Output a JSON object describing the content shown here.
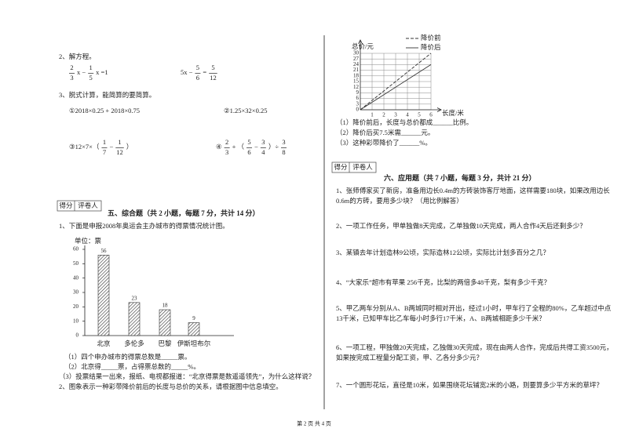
{
  "left": {
    "q2": "2、解方程。",
    "eq1": [
      {
        "n": "2",
        "d": "3"
      },
      "x −",
      {
        "n": "1",
        "d": "5"
      },
      "x =1"
    ],
    "eq2": [
      "5x −",
      {
        "n": "5",
        "d": "6"
      },
      "=",
      {
        "n": "5",
        "d": "12"
      }
    ],
    "q3": "3、脱式计算，能简算的要简算。",
    "c1": [
      "①2018×0.25 + 2018×0.75"
    ],
    "c2": [
      "②1.25×32×0.25"
    ],
    "c3": [
      "③12×7×（",
      {
        "n": "1",
        "d": "7"
      },
      "−",
      {
        "n": "1",
        "d": "12"
      },
      "）"
    ],
    "c4": [
      "④",
      {
        "n": "2",
        "d": "3"
      },
      "+ （",
      {
        "n": "5",
        "d": "6"
      },
      "−",
      {
        "n": "3",
        "d": "4"
      },
      "）÷",
      {
        "n": "3",
        "d": "8"
      }
    ],
    "score": [
      "得分",
      "评卷人"
    ],
    "section": "五、综合题（共 2 小题，每题 7 分，共计 14 分）",
    "p1": "1、下面是申报2008年奥运会主办城市的得票情况统计图。",
    "bar_chart": {
      "unit": "单位：票",
      "categories": [
        "北京",
        "多伦多",
        "巴黎",
        "伊斯坦布尔"
      ],
      "values": [
        56,
        23,
        18,
        9
      ],
      "ylim": [
        0,
        60
      ],
      "yticks": [
        0,
        10,
        20,
        30,
        40,
        50,
        60
      ]
    },
    "subs": [
      "（1）四个申办城市的得票总数是_____票。",
      "（2）北京得_____票，占得票总数的_____%。",
      "（3）投票结果一出来，报纸、电视都报道：“北京得票是数遥遥领先”，为什么这样说？"
    ],
    "p2": "2、图象表示一种彩带降价前后的长度与总价的关系，请根据图中信息填空。"
  },
  "right": {
    "line_chart": {
      "ylabel": "总价/元",
      "xlabel": "长度/米",
      "x": [
        0,
        6
      ],
      "series": [
        {
          "name": "降价前",
          "values": [
            0,
            30
          ]
        },
        {
          "name": "降价后",
          "values": [
            0,
            24
          ]
        }
      ],
      "xlim": [
        0,
        6
      ],
      "ylim": [
        0,
        30
      ],
      "xticks": [
        1,
        2,
        3,
        4,
        5,
        6
      ],
      "yticks": [
        0,
        3,
        6,
        9,
        12,
        15,
        18,
        21,
        24,
        27,
        30
      ]
    },
    "subs": [
      "（1）降价前后，长度与总价都成______比例。",
      "（2）降价后买7.5米需______元。",
      "（3）这种彩带降价了______%。"
    ],
    "score": [
      "得分",
      "评卷人"
    ],
    "section": "六、应用题（共 7 小题，每题 3 分，共计 21 分）",
    "questions": [
      [
        "1、张师傅家买了新房，准备用边长0.4m的方砖装饰客厅地面，这样需要180块，如果改用边长",
        "0.6m的方砖，要用多少块？（用比例解答）"
      ],
      [
        "2、一项工作任务，甲单独做8天完成，乙单独做10天完成，两人合作4天后还剩多少？"
      ],
      [
        "3、某镇去年计划造林9公顷，实际造林12公顷，实际比计划多百分之几？"
      ],
      [
        "4、“大家乐”超市有苹果 256千克，比梨的两倍多48千克，梨有多少千克？"
      ],
      [
        "5、甲乙两车分别从A、B两城同时相对开出，经过1小时，甲车行了全程的80%，乙车超过中点",
        "13千米，已知甲车比乙车每小时多行17千米，A、B两城相距多少千米？"
      ],
      [
        "6、一项工程，甲独做20天完成，乙独做30天完成，现在由两人合作，完成后共得工资3500元，",
        "如果按完成工程量分配工资，甲、乙各分多少元？"
      ],
      [
        "7、一个圆形花坛，直径是10米，如果围绕花坛铺宽2米的小路，则要算多少平方米的草坪？"
      ]
    ]
  },
  "footer": "第 2 页 共 4 页"
}
